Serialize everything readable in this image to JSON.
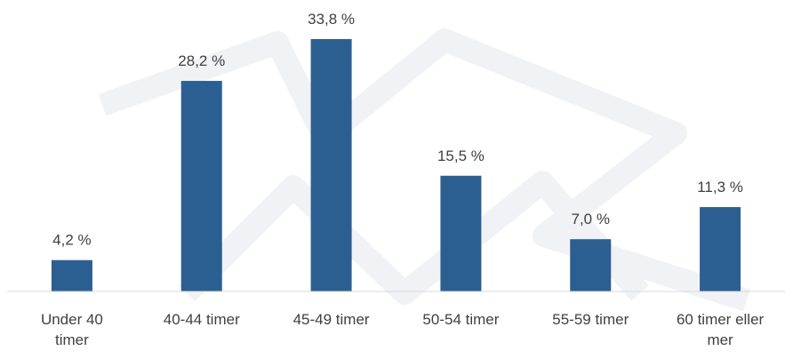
{
  "chart_data": {
    "type": "bar",
    "categories": [
      [
        "Under 40",
        "timer"
      ],
      [
        "40-44 timer"
      ],
      [
        "45-49 timer"
      ],
      [
        "50-54 timer"
      ],
      [
        "55-59 timer"
      ],
      [
        "60 timer eller",
        "mer"
      ]
    ],
    "values": [
      4.2,
      28.2,
      33.8,
      15.5,
      7.0,
      11.3
    ],
    "data_labels": [
      "4,2 %",
      "28,2 %",
      "33,8 %",
      "15,5 %",
      "7,0 %",
      "11,3 %"
    ],
    "ylim": [
      0,
      33.8
    ],
    "grid": false,
    "title": "",
    "xlabel": "",
    "ylabel": ""
  },
  "colors": {
    "bar": "#2c5f91",
    "axis": "#d9d9d9",
    "text": "#404040"
  }
}
